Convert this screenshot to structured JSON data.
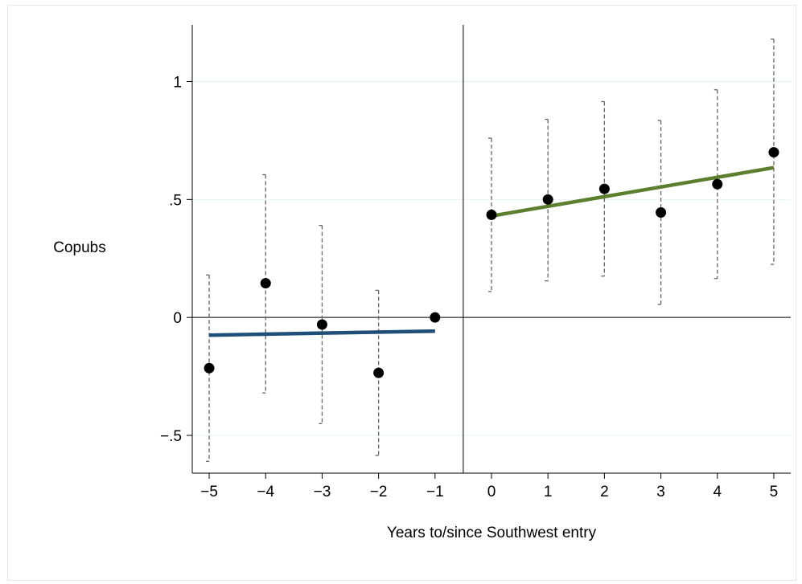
{
  "chart_data": {
    "type": "scatter",
    "xlabel": "Years to/since Southwest entry",
    "ylabel": "Copubs",
    "xlim": [
      -5.3,
      5.3
    ],
    "ylim": [
      -0.66,
      1.24
    ],
    "x_ticks": [
      -5,
      -4,
      -3,
      -2,
      -1,
      0,
      1,
      2,
      3,
      4,
      5
    ],
    "x_tick_labels": [
      "−5",
      "−4",
      "−3",
      "−2",
      "−1",
      "0",
      "1",
      "2",
      "3",
      "4",
      "5"
    ],
    "y_ticks": [
      -0.5,
      0,
      0.5,
      1
    ],
    "y_tick_labels": [
      "−.5",
      "0",
      ".5",
      "1"
    ],
    "grid": true,
    "reference_lines": {
      "y": 0,
      "x": -0.5
    },
    "points": [
      {
        "x": -5,
        "y": -0.215,
        "ci_low": -0.61,
        "ci_high": 0.18
      },
      {
        "x": -4,
        "y": 0.145,
        "ci_low": -0.32,
        "ci_high": 0.605
      },
      {
        "x": -3,
        "y": -0.03,
        "ci_low": -0.45,
        "ci_high": 0.39
      },
      {
        "x": -2,
        "y": -0.235,
        "ci_low": -0.585,
        "ci_high": 0.115
      },
      {
        "x": -1,
        "y": 0.0,
        "ci_low": null,
        "ci_high": null
      },
      {
        "x": 0,
        "y": 0.435,
        "ci_low": 0.11,
        "ci_high": 0.76
      },
      {
        "x": 1,
        "y": 0.5,
        "ci_low": 0.155,
        "ci_high": 0.84
      },
      {
        "x": 2,
        "y": 0.545,
        "ci_low": 0.175,
        "ci_high": 0.915
      },
      {
        "x": 3,
        "y": 0.445,
        "ci_low": 0.055,
        "ci_high": 0.835
      },
      {
        "x": 4,
        "y": 0.565,
        "ci_low": 0.165,
        "ci_high": 0.965
      },
      {
        "x": 5,
        "y": 0.7,
        "ci_low": 0.225,
        "ci_high": 1.18
      }
    ],
    "fit_lines": [
      {
        "x": [
          -5,
          -1
        ],
        "y": [
          -0.075,
          -0.058
        ],
        "color": "#1f4e79"
      },
      {
        "x": [
          0,
          5
        ],
        "y": [
          0.43,
          0.635
        ],
        "color": "#5b7f2f"
      }
    ],
    "point_color": "#000000",
    "ci_color": "#666666",
    "grid_color": "#eaf2f3"
  }
}
